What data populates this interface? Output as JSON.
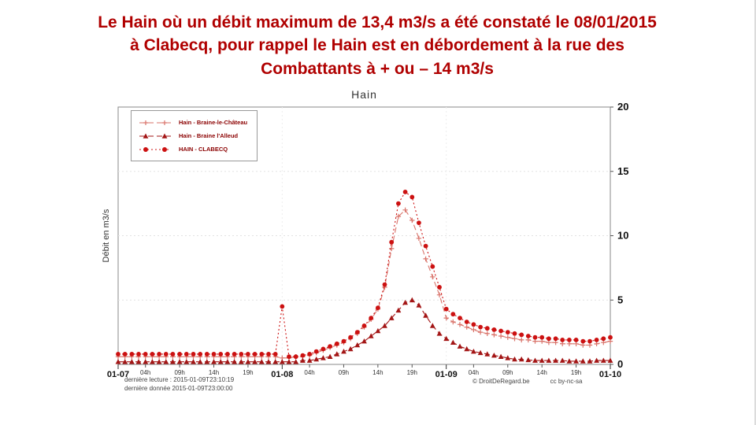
{
  "slide": {
    "title_lines": [
      "Le Hain où un débit maximum de 13,4 m3/s a été constaté le 08/01/2015",
      "à Clabecq, pour rappel le Hain est en débordement à la rue des",
      "Combattants à + ou – 14 m3/s"
    ],
    "title_color": "#b00000"
  },
  "chart_data": {
    "type": "line",
    "title": "Hain",
    "ylabel": "Débit en m3/s",
    "ylim": [
      0,
      20
    ],
    "yticks": [
      0,
      5,
      10,
      15,
      20
    ],
    "xlim": [
      0,
      72
    ],
    "x_unit": "hours from 2015-01-07 00:00, step 1h per point",
    "grid": true,
    "legend_position": "top-left",
    "x_major_ticks": [
      {
        "t": 0,
        "label": "01-07"
      },
      {
        "t": 24,
        "label": "01-08"
      },
      {
        "t": 48,
        "label": "01-09"
      },
      {
        "t": 72,
        "label": "01-10"
      }
    ],
    "x_minor_ticks": [
      {
        "t": 4,
        "label": "04h"
      },
      {
        "t": 9,
        "label": "09h"
      },
      {
        "t": 14,
        "label": "14h"
      },
      {
        "t": 19,
        "label": "19h"
      },
      {
        "t": 28,
        "label": "04h"
      },
      {
        "t": 33,
        "label": "09h"
      },
      {
        "t": 38,
        "label": "14h"
      },
      {
        "t": 43,
        "label": "19h"
      },
      {
        "t": 52,
        "label": "04h"
      },
      {
        "t": 57,
        "label": "09h"
      },
      {
        "t": 62,
        "label": "14h"
      },
      {
        "t": 67,
        "label": "19h"
      }
    ],
    "series": [
      {
        "name": "Hain - Braine-le-Château",
        "color": "#d9736a",
        "marker": "plus",
        "line_style": "dashed",
        "values": [
          0.6,
          0.6,
          0.6,
          0.6,
          0.6,
          0.6,
          0.6,
          0.6,
          0.6,
          0.6,
          0.6,
          0.6,
          0.6,
          0.6,
          0.6,
          0.6,
          0.6,
          0.6,
          0.6,
          0.6,
          0.6,
          0.6,
          0.6,
          0.6,
          0.5,
          0.5,
          0.6,
          0.6,
          0.7,
          0.9,
          1.1,
          1.3,
          1.5,
          1.7,
          2.0,
          2.4,
          2.9,
          3.5,
          4.3,
          6.0,
          9.0,
          11.5,
          12.0,
          11.2,
          9.8,
          8.2,
          6.8,
          5.4,
          3.6,
          3.3,
          3.1,
          2.9,
          2.7,
          2.5,
          2.4,
          2.3,
          2.2,
          2.1,
          2.0,
          1.9,
          1.9,
          1.8,
          1.8,
          1.7,
          1.7,
          1.6,
          1.6,
          1.6,
          1.5,
          1.5,
          1.6,
          1.7,
          1.8
        ]
      },
      {
        "name": "Hain - Braine l'Alleud",
        "color": "#a31515",
        "marker": "triangle",
        "line_style": "dashed",
        "values": [
          0.2,
          0.2,
          0.2,
          0.2,
          0.2,
          0.2,
          0.2,
          0.2,
          0.2,
          0.2,
          0.2,
          0.2,
          0.2,
          0.2,
          0.2,
          0.2,
          0.2,
          0.2,
          0.2,
          0.2,
          0.2,
          0.2,
          0.2,
          0.2,
          0.2,
          0.2,
          0.2,
          0.3,
          0.3,
          0.4,
          0.5,
          0.6,
          0.8,
          1.0,
          1.2,
          1.5,
          1.8,
          2.2,
          2.6,
          3.0,
          3.6,
          4.2,
          4.8,
          5.0,
          4.6,
          3.8,
          3.0,
          2.4,
          2.0,
          1.7,
          1.4,
          1.2,
          1.0,
          0.9,
          0.8,
          0.7,
          0.6,
          0.5,
          0.4,
          0.4,
          0.35,
          0.3,
          0.3,
          0.3,
          0.3,
          0.3,
          0.25,
          0.25,
          0.25,
          0.25,
          0.3,
          0.3,
          0.3
        ]
      },
      {
        "name": "HAIN - CLABECQ",
        "color": "#cc1111",
        "marker": "circle",
        "line_style": "dotted",
        "values": [
          0.8,
          0.8,
          0.8,
          0.8,
          0.8,
          0.8,
          0.8,
          0.8,
          0.8,
          0.8,
          0.8,
          0.8,
          0.8,
          0.8,
          0.8,
          0.8,
          0.8,
          0.8,
          0.8,
          0.8,
          0.8,
          0.8,
          0.8,
          0.8,
          4.5,
          0.6,
          0.6,
          0.7,
          0.8,
          1.0,
          1.2,
          1.4,
          1.6,
          1.8,
          2.1,
          2.5,
          3.0,
          3.6,
          4.4,
          6.2,
          9.5,
          12.5,
          13.4,
          13.0,
          11.0,
          9.2,
          7.6,
          6.0,
          4.3,
          3.9,
          3.6,
          3.3,
          3.1,
          2.9,
          2.8,
          2.7,
          2.6,
          2.5,
          2.4,
          2.3,
          2.2,
          2.1,
          2.1,
          2.0,
          2.0,
          1.9,
          1.9,
          1.9,
          1.8,
          1.8,
          1.9,
          2.0,
          2.1
        ]
      }
    ]
  },
  "footer": {
    "last_read": "dernière lecture : 2015-01-09T23:10:19",
    "last_data": "dernière donnée  2015-01-09T23:00:00",
    "copyright": "© DroitDeRegard.be",
    "license": "cc by-nc-sa"
  }
}
